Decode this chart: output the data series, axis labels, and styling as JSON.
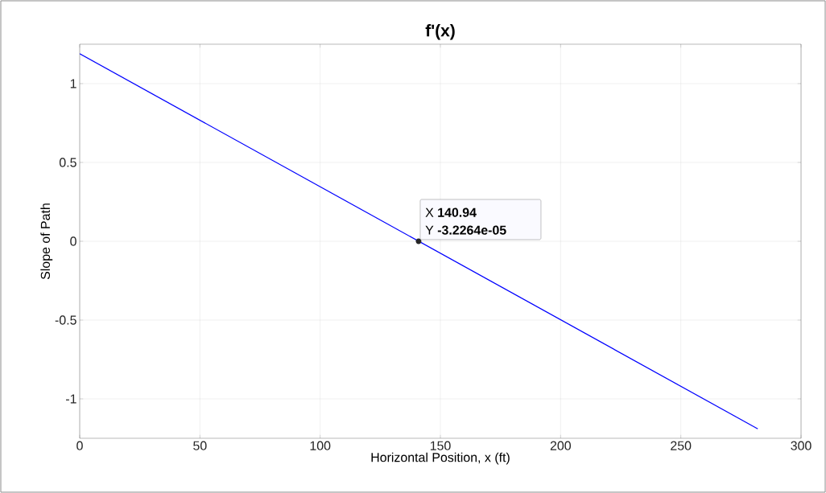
{
  "chart_data": {
    "type": "line",
    "title": "f'(x)",
    "xlabel": "Horizontal Position, x (ft)",
    "ylabel": "Slope of Path",
    "x": [
      0,
      282
    ],
    "series": [
      {
        "color": "#0000ff",
        "values": [
          1.19,
          -1.19
        ]
      }
    ],
    "xlim": [
      0,
      300
    ],
    "xticks": [
      0,
      50,
      100,
      150,
      200,
      250,
      300
    ],
    "ylim": [
      -1.25,
      1.25
    ],
    "yticks": [
      -1,
      -0.5,
      0,
      0.5,
      1
    ],
    "grid": true,
    "annotations": [
      {
        "text": "X **140.94**",
        "x": 140.94,
        "y": -3.2264e-05
      },
      {
        "text": "Y **-3.2264e-05**",
        "x": 140.94,
        "y": -3.2264e-05
      }
    ]
  }
}
